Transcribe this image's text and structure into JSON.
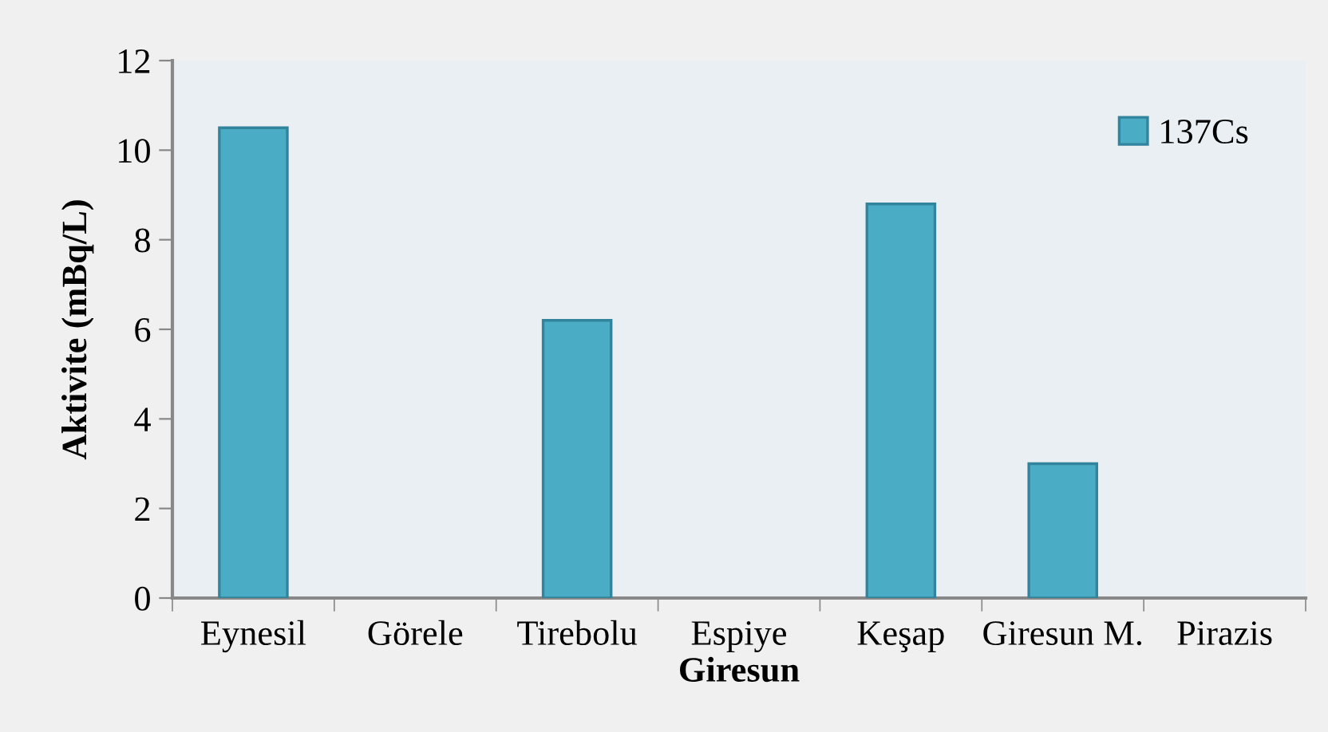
{
  "chart_data": {
    "type": "bar",
    "xlabel": "Giresun",
    "ylabel": "Aktivite (mBq/L)",
    "categories": [
      "Eynesil",
      "Görele",
      "Tirebolu",
      "Espiye",
      "Keşap",
      "Giresun M.",
      "Pirazis"
    ],
    "series": [
      {
        "name": "137Cs",
        "color": "#4bacc6",
        "values": [
          10.5,
          null,
          6.2,
          null,
          8.8,
          3.0,
          null
        ]
      }
    ],
    "ylim": [
      0,
      12
    ],
    "yticks": [
      0,
      2,
      4,
      6,
      8,
      10,
      12
    ],
    "grid": false,
    "legend": "top right"
  }
}
